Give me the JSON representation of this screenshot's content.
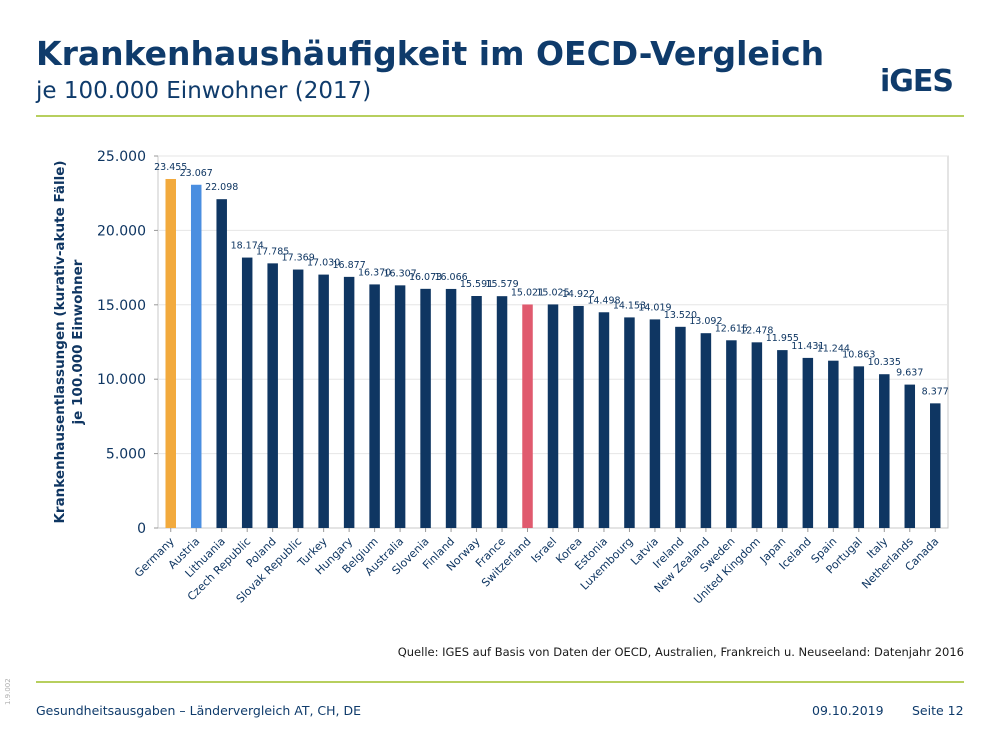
{
  "header": {
    "title": "Krankenhaushäufigkeit im OECD-Vergleich",
    "subtitle": "je 100.000 Einwohner (2017)",
    "logo": "iGES"
  },
  "colors": {
    "default_bar": "#0f3662",
    "germany_bar": "#f2aa3d",
    "austria_bar": "#4a8ee0",
    "switzerland_bar": "#e05a6e",
    "title": "#0f3b6b",
    "rule": "#b7cf5e"
  },
  "chart_data": {
    "type": "bar",
    "ylabel": "Krankenhausentlassungen (kurativ-akute Fälle)\nje 100.000 Einwohner",
    "ylim": [
      0,
      25000
    ],
    "yticks": [
      "0",
      "5.000",
      "10.000",
      "15.000",
      "20.000",
      "25.000"
    ],
    "ytick_values": [
      0,
      5000,
      10000,
      15000,
      20000,
      25000
    ],
    "grid": true,
    "categories": [
      "Germany",
      "Austria",
      "Lithuania",
      "Czech Republic",
      "Poland",
      "Slovak Republic",
      "Turkey",
      "Hungary",
      "Belgium",
      "Australia",
      "Slovenia",
      "Finland",
      "Norway",
      "France",
      "Switzerland",
      "Israel",
      "Korea",
      "Estonia",
      "Luxembourg",
      "Latvia",
      "Ireland",
      "New Zealand",
      "Sweden",
      "United Kingdom",
      "Japan",
      "Iceland",
      "Spain",
      "Portugal",
      "Italy",
      "Netherlands",
      "Canada"
    ],
    "values": [
      23455,
      23067,
      22098,
      18174,
      17785,
      17369,
      17030,
      16877,
      16370,
      16307,
      16073,
      16066,
      15591,
      15579,
      15021,
      15025,
      14922,
      14498,
      14153,
      14019,
      13520,
      13092,
      12615,
      12478,
      11955,
      11431,
      11244,
      10863,
      10335,
      9637,
      8377
    ],
    "value_labels": [
      "23.455",
      "23.067",
      "22.098",
      "18.174",
      "17.785",
      "17.369",
      "17.030",
      "16.877",
      "16.370",
      "16.307",
      "16.073",
      "16.066",
      "15.591",
      "15.579",
      "15.021",
      "15.025",
      "14.922",
      "14.498",
      "14.153",
      "14.019",
      "13.520",
      "13.092",
      "12.615",
      "12.478",
      "11.955",
      "11.431",
      "11.244",
      "10.863",
      "10.335",
      "9.637",
      "8.377"
    ],
    "highlight": {
      "Germany": "#f2aa3d",
      "Austria": "#4a8ee0",
      "Switzerland": "#e05a6e"
    }
  },
  "source_note": "Quelle: IGES auf Basis von Daten der OECD, Australien, Frankreich u. Neuseeland: Datenjahr 2016",
  "footer": {
    "left": "Gesundheitsausgaben – Ländervergleich AT, CH, DE",
    "date": "09.10.2019",
    "page": "Seite 12",
    "version": "1.9.002"
  }
}
